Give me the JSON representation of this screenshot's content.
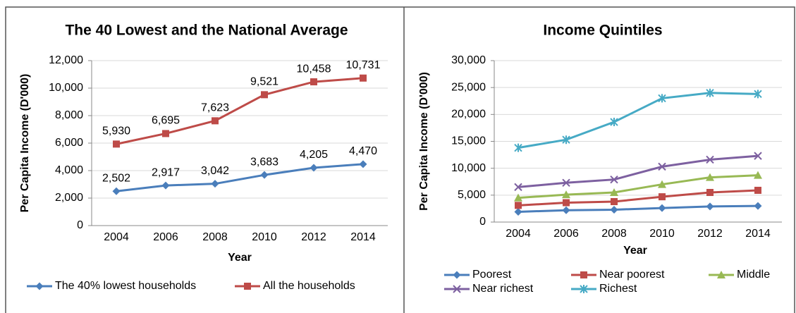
{
  "chart_data": [
    {
      "type": "line",
      "title": "The 40 Lowest and the National Average",
      "x_label": "Year",
      "y_label": "Per Capita Income (D'000)",
      "categories": [
        "2004",
        "2006",
        "2008",
        "2010",
        "2012",
        "2014"
      ],
      "ylim": [
        0,
        12000
      ],
      "yticks": [
        0,
        {
          "value": 2000,
          "label": "2,000"
        },
        {
          "value": 4000,
          "label": "4,000"
        },
        {
          "value": 6000,
          "label": "6,000"
        },
        {
          "value": 8000,
          "label": "8,000"
        },
        {
          "value": 10000,
          "label": "10,000"
        },
        {
          "value": 12000,
          "label": "12,000"
        }
      ],
      "grid": true,
      "legend": "bottom",
      "series": [
        {
          "name": "The 40% lowest households",
          "color": "#4a7ebb",
          "marker": "diamond",
          "values": [
            2502,
            2917,
            3042,
            3683,
            4205,
            4470
          ],
          "value_labels": [
            "2,502",
            "2,917",
            "3,042",
            "3,683",
            "4,205",
            "4,470"
          ]
        },
        {
          "name": "All the households",
          "color": "#be4b48",
          "marker": "square",
          "values": [
            5930,
            6695,
            7623,
            9521,
            10458,
            10731
          ],
          "value_labels": [
            "5,930",
            "6,695",
            "7,623",
            "9,521",
            "10,458",
            "10,731"
          ]
        }
      ]
    },
    {
      "type": "line",
      "title": "Income Quintiles",
      "x_label": "Year",
      "y_label": "Per Capita Income (D'000)",
      "categories": [
        "2004",
        "2006",
        "2008",
        "2010",
        "2012",
        "2014"
      ],
      "ylim": [
        0,
        30000
      ],
      "yticks": [
        0,
        {
          "value": 5000,
          "label": "5,000"
        },
        {
          "value": 10000,
          "label": "10,000"
        },
        {
          "value": 15000,
          "label": "15,000"
        },
        {
          "value": 20000,
          "label": "20,000"
        },
        {
          "value": 25000,
          "label": "25,000"
        },
        {
          "value": 30000,
          "label": "30,000"
        }
      ],
      "grid": true,
      "legend": "bottom",
      "series": [
        {
          "name": "Poorest",
          "color": "#4a7ebb",
          "marker": "diamond",
          "values": [
            1900,
            2200,
            2300,
            2600,
            2900,
            3000
          ]
        },
        {
          "name": "Near poorest",
          "color": "#be4b48",
          "marker": "square",
          "values": [
            3100,
            3600,
            3800,
            4700,
            5500,
            5900
          ]
        },
        {
          "name": "Middle",
          "color": "#98b954",
          "marker": "triangle",
          "values": [
            4500,
            5100,
            5500,
            7000,
            8300,
            8700
          ]
        },
        {
          "name": "Near richest",
          "color": "#7d60a0",
          "marker": "x",
          "values": [
            6500,
            7300,
            7900,
            10300,
            11600,
            12300
          ]
        },
        {
          "name": "Richest",
          "color": "#46aac5",
          "marker": "asterisk",
          "values": [
            13800,
            15300,
            18600,
            23000,
            24000,
            23800
          ]
        }
      ]
    }
  ]
}
